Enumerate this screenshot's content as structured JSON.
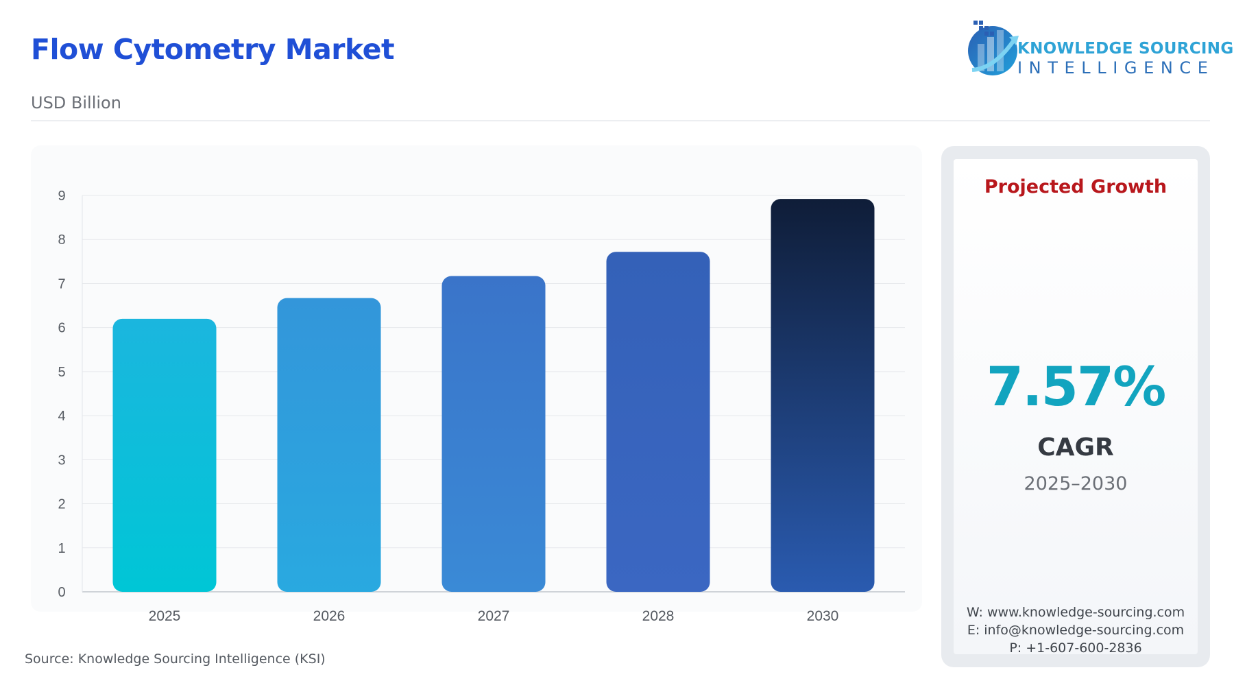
{
  "header": {
    "title": "Flow Cytometry Market",
    "subtitle": "USD Billion"
  },
  "logo": {
    "line1": "KNOWLEDGE SOURCING",
    "line2": "INTELLIGENCE",
    "icon": "building-growth-logo-icon"
  },
  "chart_data": {
    "type": "bar",
    "categories": [
      "2025",
      "2026",
      "2027",
      "2028",
      "2030"
    ],
    "values": [
      6.2,
      6.67,
      7.17,
      7.72,
      8.92
    ],
    "title": "",
    "xlabel": "",
    "ylabel": "",
    "ylim": [
      0,
      9
    ],
    "yticks": [
      "0",
      "1",
      "2",
      "3",
      "4",
      "5",
      "6",
      "7",
      "8",
      "9"
    ],
    "grid": true,
    "bar_colors": [
      [
        "#00c6d6",
        "#1bb6de"
      ],
      [
        "#29a9e0",
        "#3396da"
      ],
      [
        "#3a8ad6",
        "#3a74c9"
      ],
      [
        "#3b67c2",
        "#3461b8"
      ],
      [
        "#2a5bb0",
        "#0f1d38"
      ]
    ]
  },
  "source": "Source: Knowledge Sourcing Intelligence (KSI)",
  "side_panel": {
    "heading": "Projected Growth",
    "cagr_value": "7.57%",
    "cagr_label": "CAGR",
    "period": "2025–2030",
    "website": "W: www.knowledge-sourcing.com",
    "email": "E: info@knowledge-sourcing.com",
    "phone": "P: +1-607-600-2836"
  }
}
